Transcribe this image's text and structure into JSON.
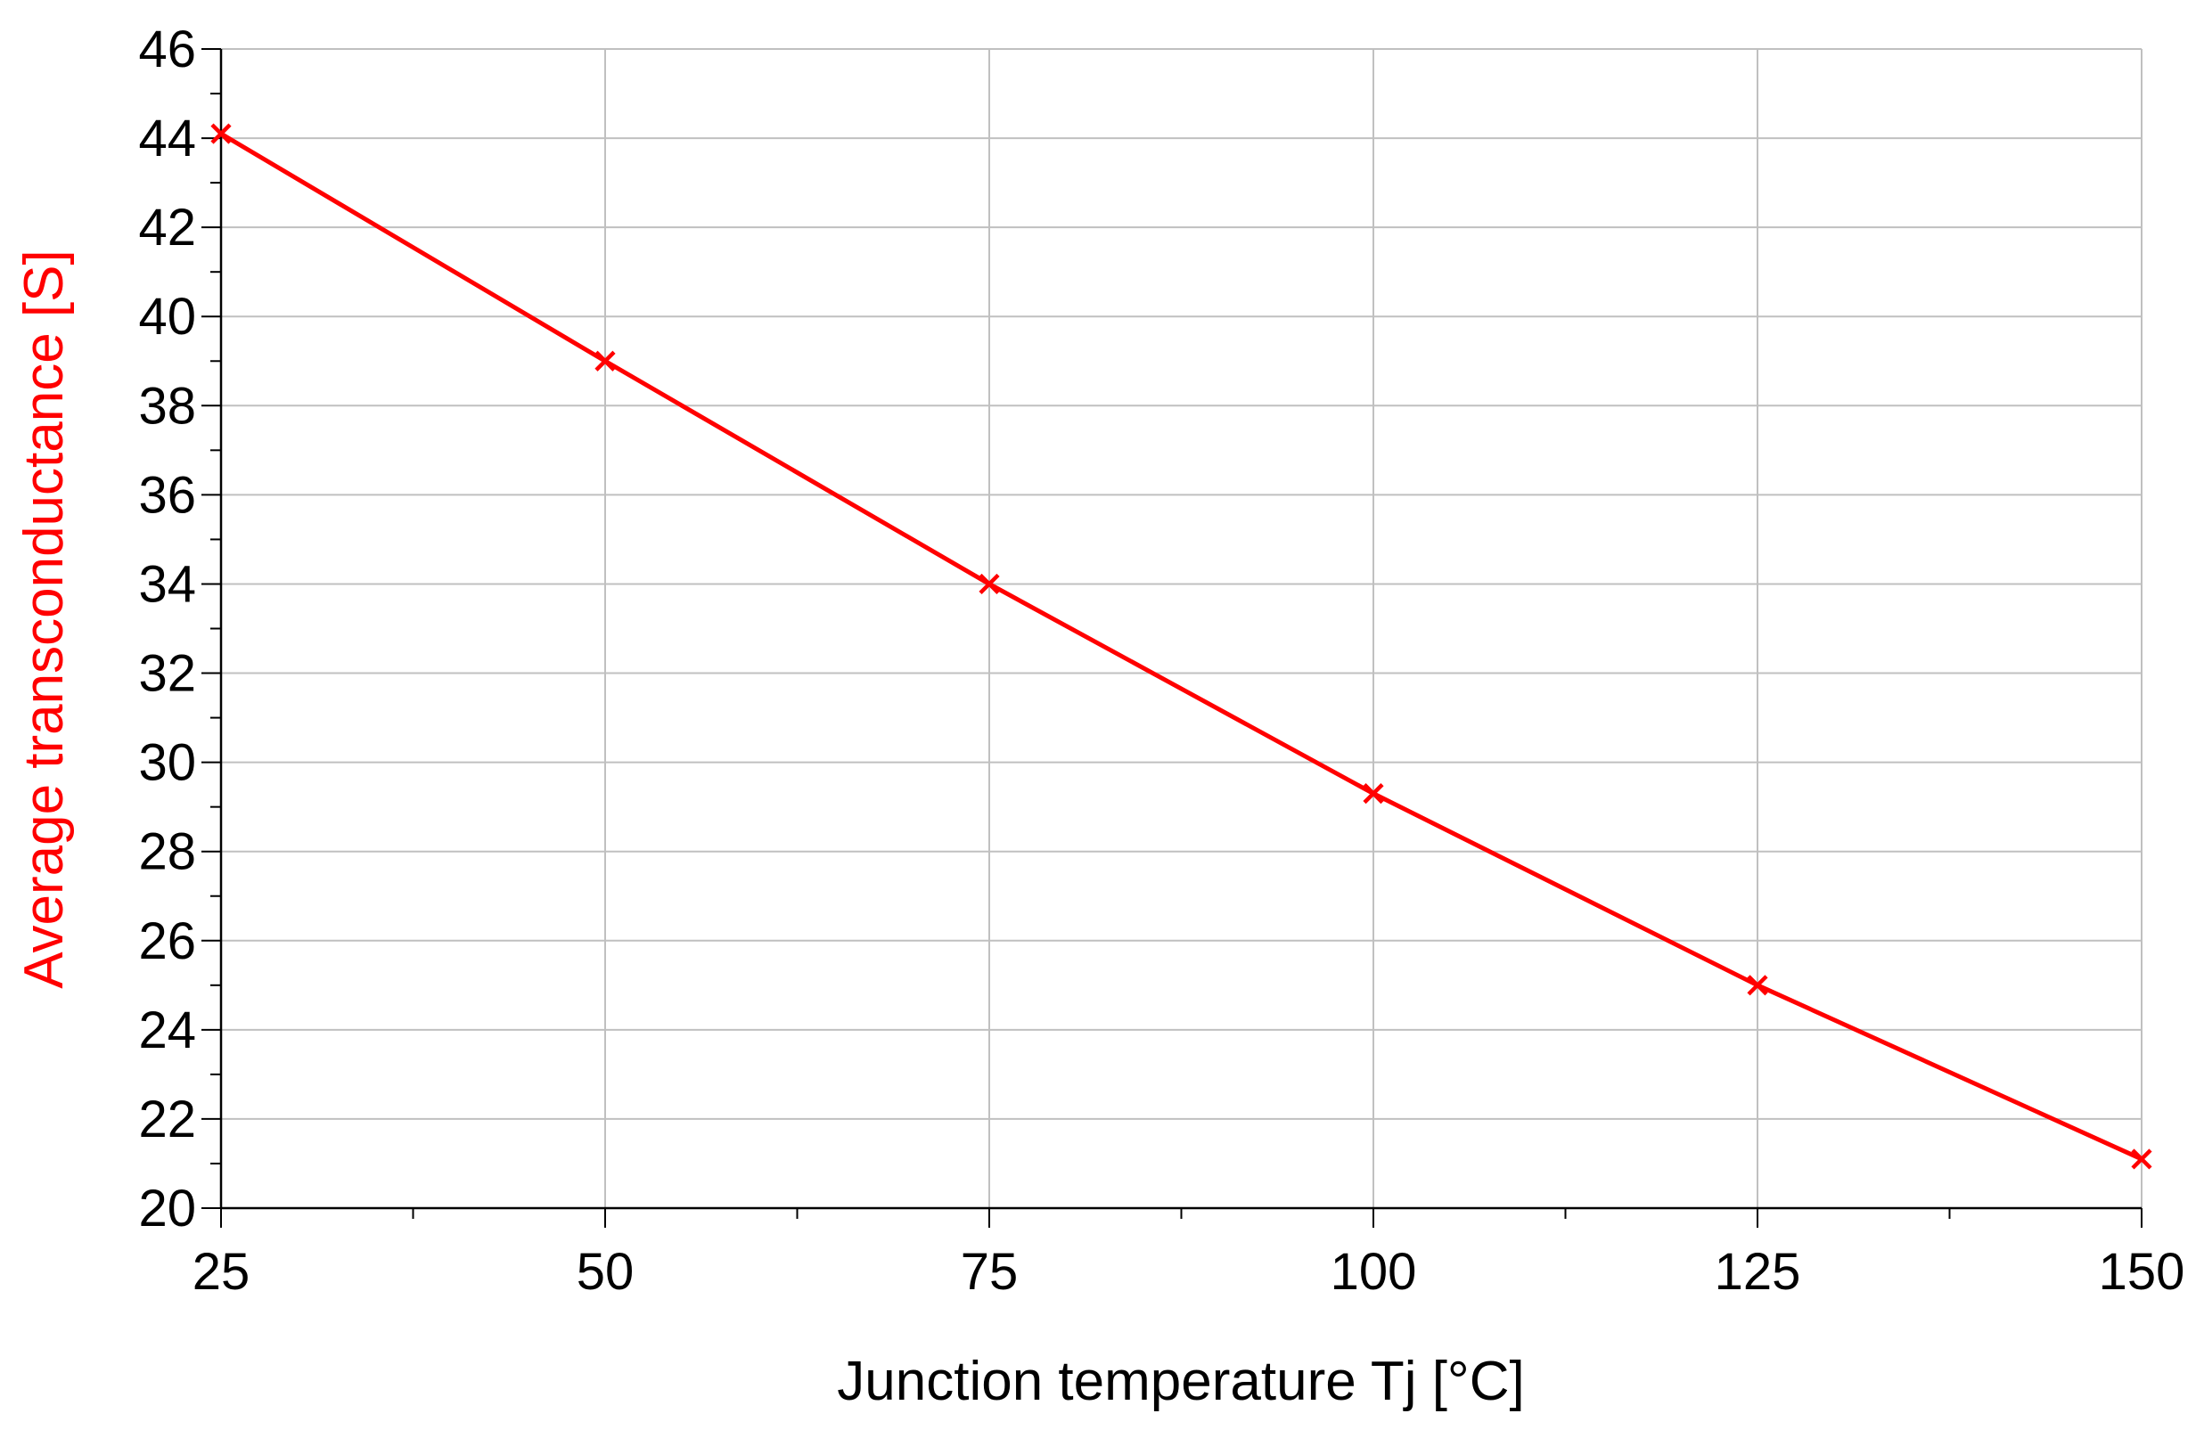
{
  "chart_data": {
    "type": "line",
    "xlabel": "Junction temperature Tj [°C]",
    "ylabel": "Average transconductance [S]",
    "xlim": [
      25,
      150
    ],
    "ylim": [
      20,
      46
    ],
    "x_ticks": [
      25,
      50,
      75,
      100,
      125,
      150
    ],
    "x_minor_step": 12.5,
    "y_ticks": [
      20,
      22,
      24,
      26,
      28,
      30,
      32,
      34,
      36,
      38,
      40,
      42,
      44,
      46
    ],
    "y_minor_step": 1,
    "grid": true,
    "series": [
      {
        "x": [
          25,
          50,
          75,
          100,
          125,
          150
        ],
        "values": [
          44.1,
          39.0,
          34.0,
          29.3,
          25.0,
          21.1
        ],
        "marker": "x",
        "color": "#ff0000"
      }
    ],
    "colors": {
      "series": "#ff0000",
      "ylabel": "#ff0000",
      "xlabel": "#000000",
      "grid": "#c0c0c0",
      "axis": "#000000"
    }
  }
}
